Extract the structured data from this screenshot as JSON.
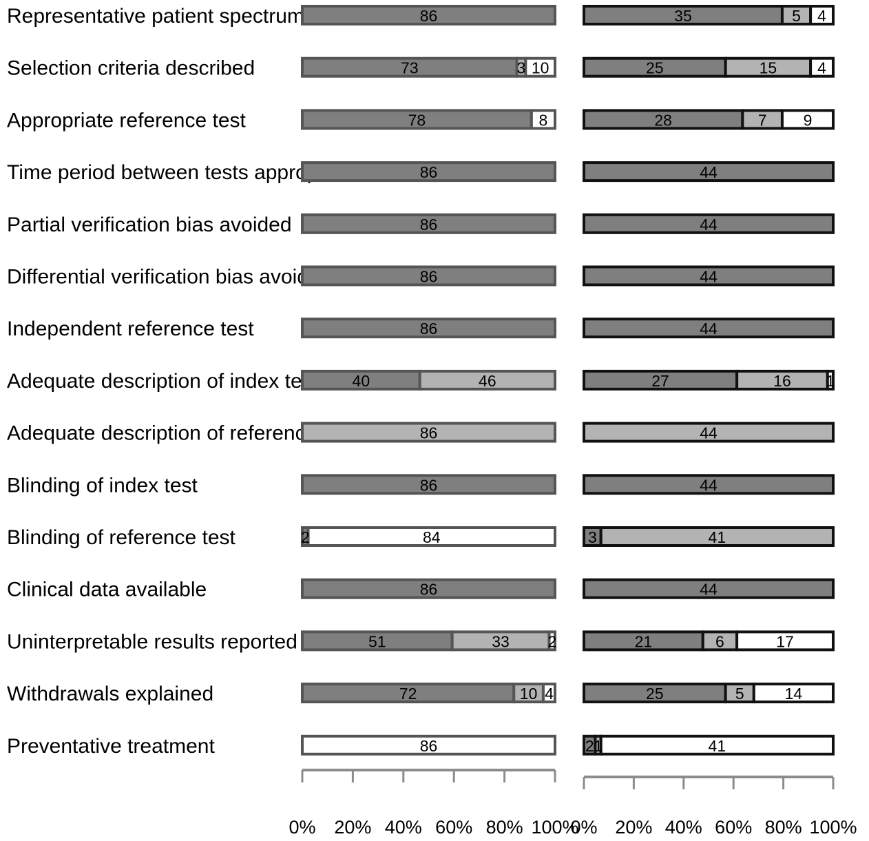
{
  "chart_data": [
    {
      "type": "bar",
      "stacked": "percent",
      "orientation": "horizontal",
      "categories": [
        "Representative patient spectrum",
        "Selection criteria described",
        "Appropriate reference test",
        "Time period between tests appropriate",
        "Partial verification bias avoided",
        "Differential verification bias avoided",
        "Independent reference test",
        "Adequate description of index test",
        "Adequate description of reference test",
        "Blinding of index test",
        "Blinding of reference test",
        "Clinical data available",
        "Uninterpretable results reported",
        "Withdrawals explained",
        "Preventative treatment"
      ],
      "series": [
        {
          "color": "#7f7f7f",
          "values": [
            86,
            73,
            78,
            86,
            86,
            86,
            86,
            40,
            0,
            86,
            2,
            86,
            51,
            72,
            0
          ]
        },
        {
          "color": "#b3b3b3",
          "values": [
            0,
            3,
            0,
            0,
            0,
            0,
            0,
            46,
            86,
            0,
            0,
            0,
            33,
            10,
            0
          ]
        },
        {
          "color": "#ffffff",
          "values": [
            0,
            10,
            8,
            0,
            0,
            0,
            0,
            0,
            0,
            0,
            84,
            0,
            2,
            4,
            86
          ]
        }
      ],
      "xlim": [
        0,
        100
      ],
      "xticks": [
        "0%",
        "20%",
        "40%",
        "60%",
        "80%",
        "100%"
      ],
      "grid": false,
      "legend": "none"
    },
    {
      "type": "bar",
      "stacked": "percent",
      "orientation": "horizontal",
      "categories": [
        "Representative patient spectrum",
        "Selection criteria described",
        "Appropriate reference test",
        "Time period between tests appropriate",
        "Partial verification bias avoided",
        "Differential verification bias avoided",
        "Independent reference test",
        "Adequate description of index test",
        "Adequate description of reference test",
        "Blinding of index test",
        "Blinding of reference test",
        "Clinical data available",
        "Uninterpretable results reported",
        "Withdrawals explained",
        "Preventative treatment"
      ],
      "series": [
        {
          "color": "#7f7f7f",
          "values": [
            35,
            25,
            28,
            44,
            44,
            44,
            44,
            27,
            0,
            44,
            3,
            44,
            21,
            25,
            2
          ]
        },
        {
          "color": "#b3b3b3",
          "values": [
            5,
            15,
            7,
            0,
            0,
            0,
            0,
            16,
            44,
            0,
            41,
            0,
            6,
            5,
            1
          ]
        },
        {
          "color": "#ffffff",
          "values": [
            4,
            4,
            9,
            0,
            0,
            0,
            0,
            1,
            0,
            0,
            0,
            0,
            17,
            14,
            41
          ]
        }
      ],
      "xlim": [
        0,
        100
      ],
      "xticks": [
        "0%",
        "20%",
        "40%",
        "60%",
        "80%",
        "100%"
      ],
      "grid": false,
      "legend": "none"
    }
  ]
}
